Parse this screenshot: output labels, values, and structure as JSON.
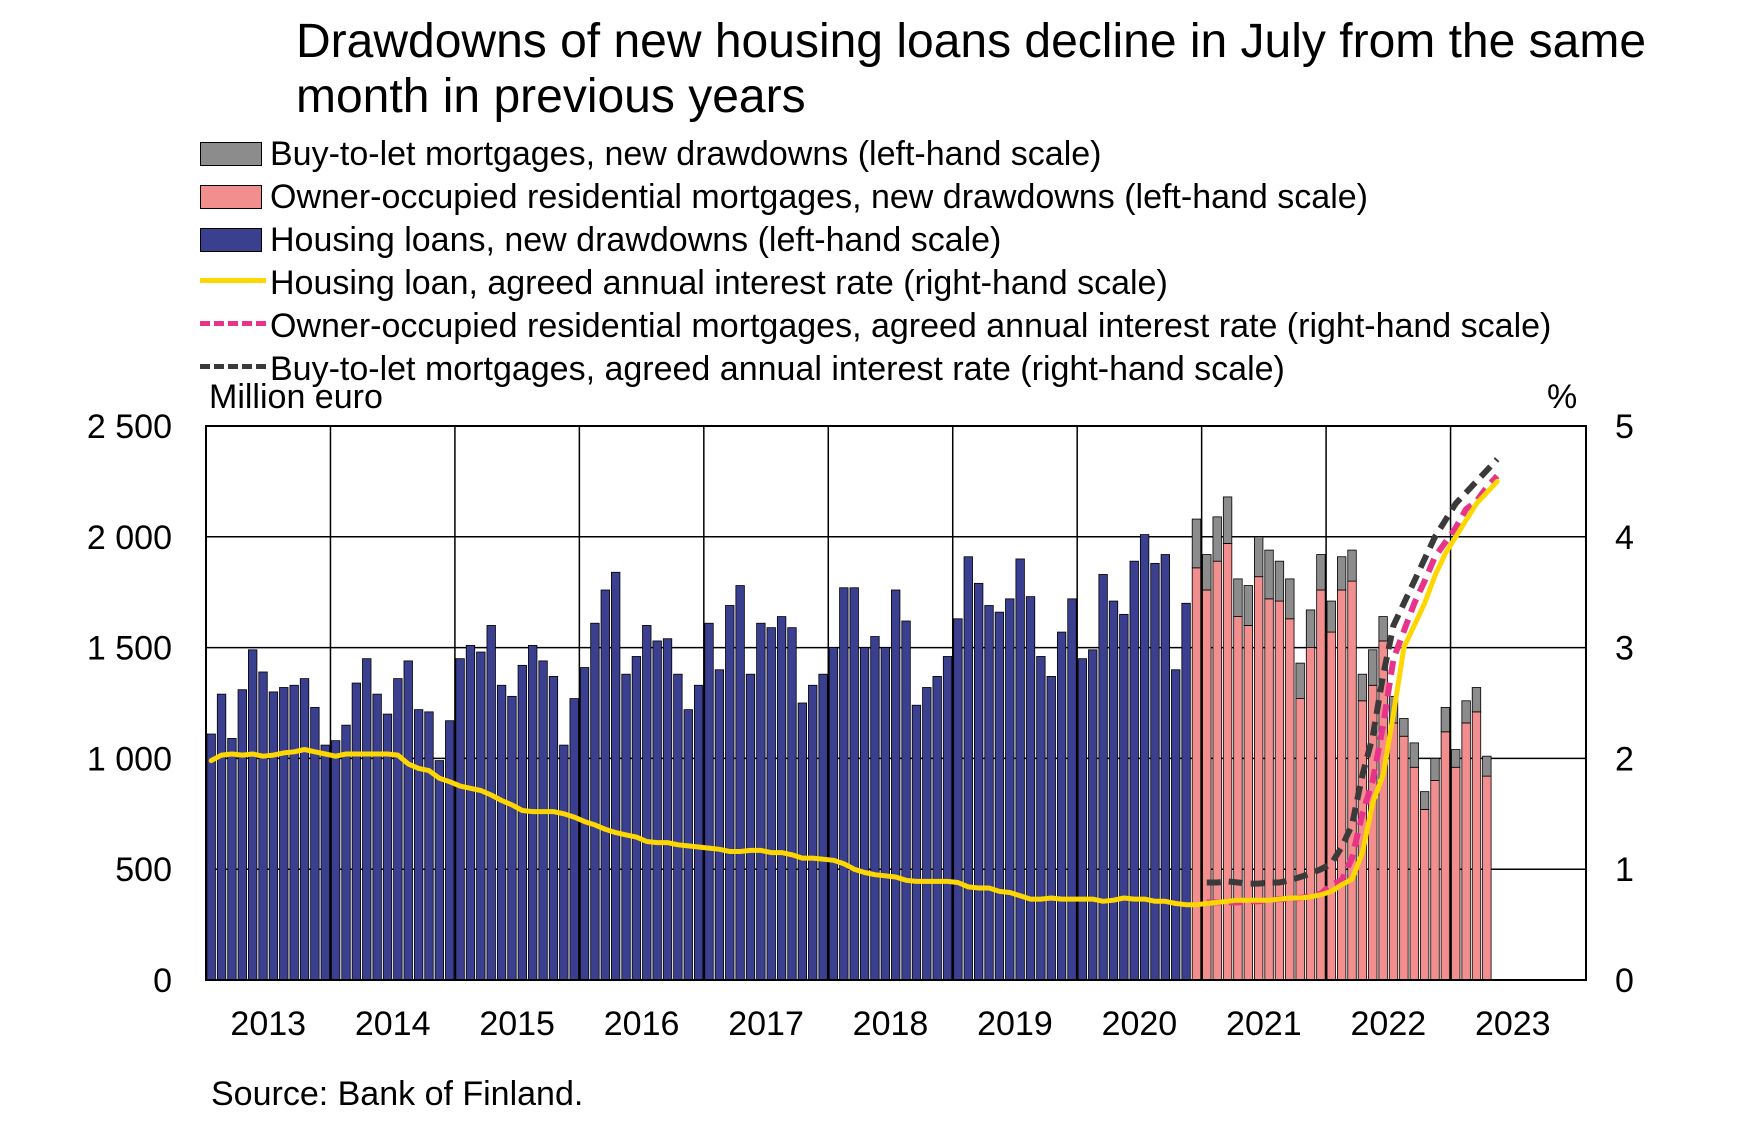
{
  "title": "Drawdowns of new housing loans decline in July from the same month in previous years",
  "legend": {
    "btl_drawdowns": "Buy-to-let mortgages, new drawdowns (left-hand scale)",
    "ooc_drawdowns": "Owner-occupied residential mortgages, new drawdowns (left-hand scale)",
    "housing_drawdowns": "Housing loans, new drawdowns (left-hand scale)",
    "housing_rate": "Housing loan, agreed annual interest rate (right-hand scale)",
    "ooc_rate": "Owner-occupied residential mortgages, agreed annual interest rate (right-hand scale)",
    "btl_rate": "Buy-to-let mortgages, agreed annual interest rate (right-hand scale)"
  },
  "left_unit": "Million euro",
  "right_unit": "%",
  "source": "Source: Bank of Finland.",
  "colors": {
    "housing_bar": "#3b3f8f",
    "ooc_bar": "#f28e8e",
    "btl_bar": "#8c8c8c",
    "housing_rate": "#ffd700",
    "ooc_rate": "#e8338a",
    "btl_rate": "#3a3a3a",
    "grid": "#000000"
  },
  "chart_data": {
    "type": "bar",
    "x_start": "2013-01",
    "x_end": "2023-07",
    "x_tick_labels": [
      "2013",
      "2014",
      "2015",
      "2016",
      "2017",
      "2018",
      "2019",
      "2020",
      "2021",
      "2022",
      "2023"
    ],
    "left_axis": {
      "label": "Million euro",
      "ylim": [
        0,
        2500
      ],
      "ticks": [
        0,
        500,
        1000,
        1500,
        2000,
        2500
      ],
      "tick_labels": [
        "0",
        "500",
        "1 000",
        "1 500",
        "2 000",
        "2 500"
      ]
    },
    "right_axis": {
      "label": "%",
      "ylim": [
        0,
        5
      ],
      "ticks": [
        0,
        1,
        2,
        3,
        4,
        5
      ],
      "tick_labels": [
        "0",
        "1",
        "2",
        "3",
        "4",
        "5"
      ]
    },
    "grid": true,
    "series": [
      {
        "name": "Housing loans, new drawdowns (left-hand scale)",
        "kind": "bar",
        "start": "2013-01",
        "values": [
          1110,
          1290,
          1090,
          1310,
          1490,
          1390,
          1300,
          1320,
          1330,
          1360,
          1230,
          1060,
          1080,
          1150,
          1340,
          1450,
          1290,
          1200,
          1360,
          1440,
          1220,
          1210,
          990,
          1170,
          1450,
          1510,
          1480,
          1600,
          1330,
          1280,
          1420,
          1510,
          1440,
          1370,
          1060,
          1270,
          1410,
          1610,
          1760,
          1840,
          1380,
          1460,
          1600,
          1530,
          1540,
          1380,
          1220,
          1330,
          1610,
          1400,
          1690,
          1780,
          1380,
          1610,
          1590,
          1640,
          1590,
          1250,
          1330,
          1380,
          1500,
          1770,
          1770,
          1500,
          1550,
          1500,
          1760,
          1620,
          1240,
          1320,
          1370,
          1460,
          1630,
          1910,
          1790,
          1690,
          1660,
          1720,
          1900,
          1730,
          1460,
          1370,
          1570,
          1720,
          1450,
          1490,
          1830,
          1710,
          1650,
          1890,
          2010,
          1880,
          1920,
          1400,
          1700
        ]
      },
      {
        "name": "Owner-occupied residential mortgages, new drawdowns (left-hand scale)",
        "kind": "bar-stacked",
        "start": "2020-12",
        "values": [
          1860,
          1760,
          1890,
          1970,
          1640,
          1600,
          1820,
          1720,
          1710,
          1630,
          1270,
          1500,
          1760,
          1570,
          1760,
          1800,
          1260,
          1330,
          1530,
          1160,
          1100,
          960,
          770,
          900,
          1120,
          960,
          1160,
          1210,
          920
        ]
      },
      {
        "name": "Buy-to-let mortgages, new drawdowns (left-hand scale)",
        "kind": "bar-stacked",
        "start": "2020-12",
        "values": [
          220,
          160,
          200,
          210,
          170,
          180,
          180,
          220,
          180,
          180,
          160,
          170,
          160,
          140,
          150,
          140,
          120,
          160,
          110,
          120,
          80,
          110,
          80,
          100,
          110,
          80,
          100,
          110,
          90
        ]
      },
      {
        "name": "Housing loan, agreed annual interest rate (right-hand scale)",
        "kind": "line",
        "start": "2013-01",
        "values": [
          1.98,
          2.03,
          2.04,
          2.03,
          2.04,
          2.02,
          2.03,
          2.05,
          2.06,
          2.08,
          2.06,
          2.04,
          2.02,
          2.04,
          2.04,
          2.04,
          2.04,
          2.04,
          2.03,
          1.95,
          1.91,
          1.89,
          1.82,
          1.79,
          1.75,
          1.73,
          1.71,
          1.67,
          1.62,
          1.58,
          1.53,
          1.52,
          1.52,
          1.52,
          1.5,
          1.47,
          1.43,
          1.4,
          1.36,
          1.33,
          1.31,
          1.29,
          1.25,
          1.24,
          1.24,
          1.22,
          1.21,
          1.2,
          1.19,
          1.18,
          1.16,
          1.16,
          1.17,
          1.17,
          1.15,
          1.15,
          1.13,
          1.1,
          1.1,
          1.09,
          1.08,
          1.05,
          1.0,
          0.97,
          0.95,
          0.94,
          0.93,
          0.9,
          0.89,
          0.89,
          0.89,
          0.89,
          0.88,
          0.84,
          0.83,
          0.83,
          0.8,
          0.79,
          0.76,
          0.73,
          0.73,
          0.74,
          0.73,
          0.73,
          0.73,
          0.73,
          0.71,
          0.72,
          0.74,
          0.73,
          0.73,
          0.71,
          0.71,
          0.69,
          0.68,
          0.68,
          0.69,
          0.7,
          0.71,
          0.72,
          0.72,
          0.72,
          0.72,
          0.73,
          0.74,
          0.74,
          0.75,
          0.77,
          0.8,
          0.86,
          0.91,
          1.15,
          1.6,
          1.85,
          2.4,
          3.0,
          3.2,
          3.4,
          3.65,
          3.85,
          4.0,
          4.15,
          4.3,
          4.4,
          4.5
        ]
      },
      {
        "name": "Owner-occupied residential mortgages, agreed annual interest rate (right-hand scale)",
        "kind": "line-dashed",
        "start": "2021-01",
        "values": [
          0.7,
          0.7,
          0.7,
          0.7,
          0.71,
          0.71,
          0.72,
          0.73,
          0.73,
          0.74,
          0.76,
          0.78,
          0.86,
          0.9,
          1.1,
          1.5,
          1.8,
          2.3,
          2.9,
          3.15,
          3.4,
          3.6,
          3.82,
          3.95,
          4.08,
          4.25,
          4.32,
          4.45,
          4.55
        ]
      },
      {
        "name": "Buy-to-let mortgages, agreed annual interest rate (right-hand scale)",
        "kind": "line-dashed",
        "start": "2021-01",
        "values": [
          0.88,
          0.88,
          0.89,
          0.88,
          0.87,
          0.87,
          0.88,
          0.88,
          0.9,
          0.93,
          0.96,
          1.0,
          1.05,
          1.2,
          1.4,
          1.85,
          2.2,
          2.75,
          3.2,
          3.4,
          3.6,
          3.8,
          4.0,
          4.15,
          4.3,
          4.4,
          4.5,
          4.6,
          4.7
        ]
      }
    ]
  }
}
